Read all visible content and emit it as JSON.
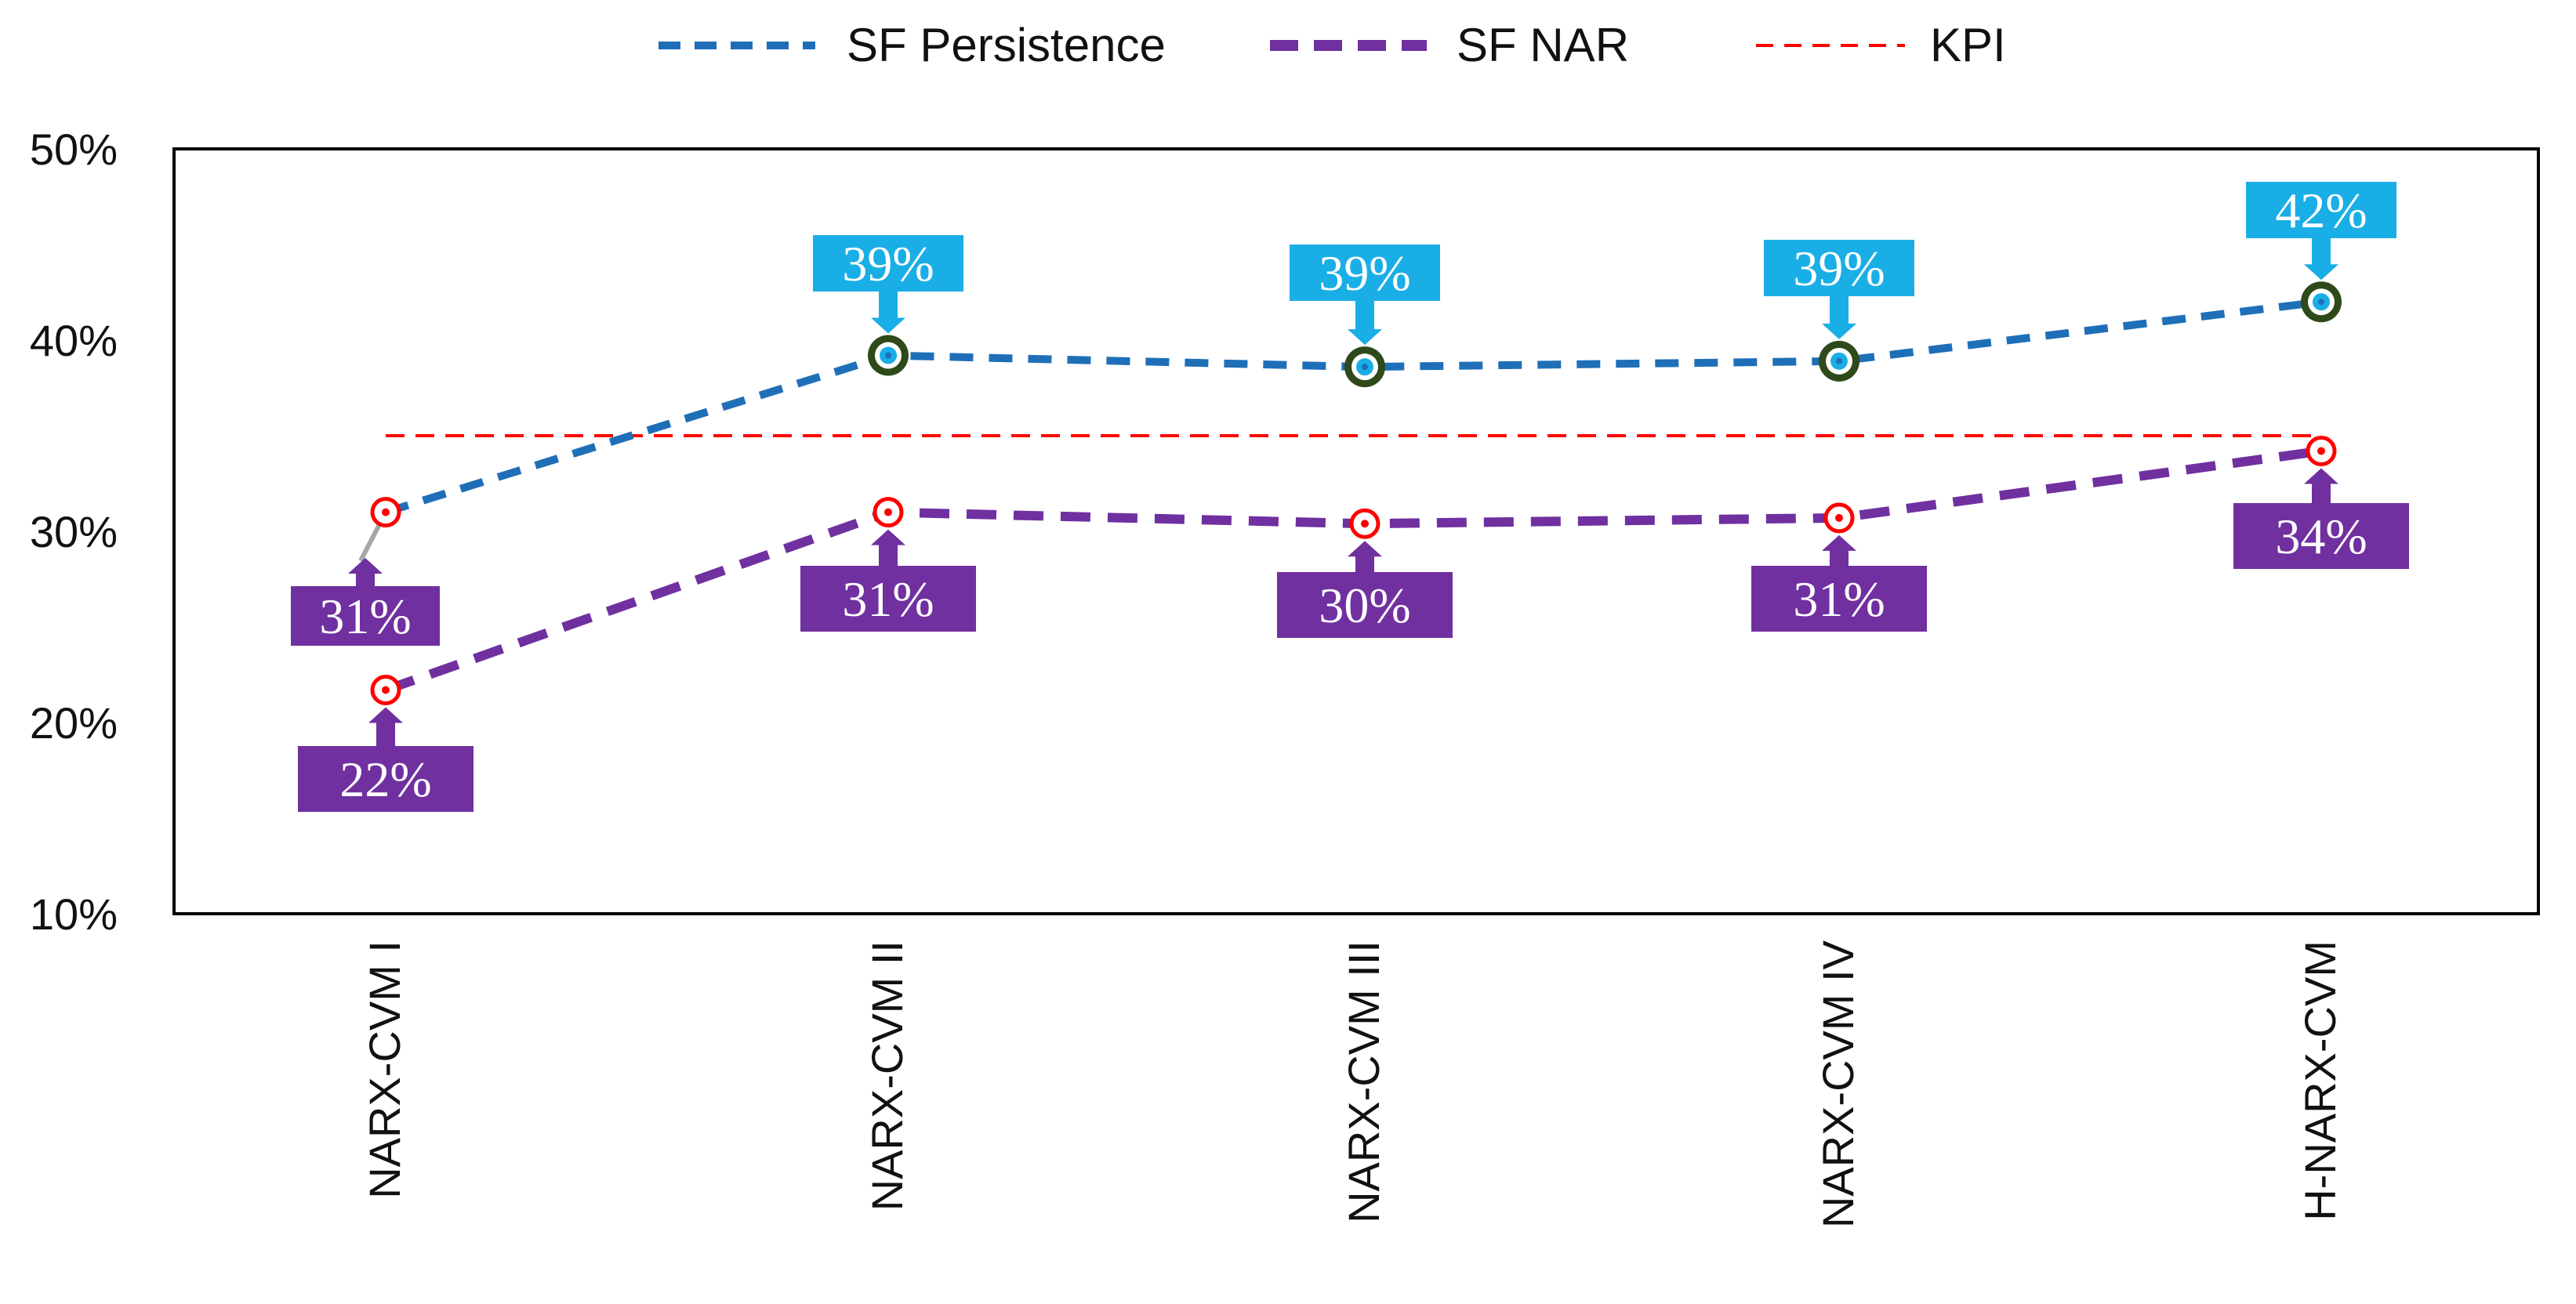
{
  "chart_data": {
    "type": "line",
    "title": "",
    "xlabel": "",
    "ylabel": "",
    "ylim": [
      10,
      50
    ],
    "yticks": [
      10,
      20,
      30,
      40,
      50
    ],
    "ytick_labels": [
      "10%",
      "20%",
      "30%",
      "40%",
      "50%"
    ],
    "categories": [
      "NARX-CVM I",
      "NARX-CVM II",
      "NARX-CVM III",
      "NARX-CVM IV",
      "H-NARX-CVM"
    ],
    "series": [
      {
        "name": "SF Persistence",
        "values": [
          31,
          39.2,
          38.6,
          38.9,
          42
        ],
        "labels": [
          "31%",
          "39%",
          "39%",
          "39%",
          "42%"
        ],
        "color": "#1f6fb8",
        "callout_color": "#1aaee6"
      },
      {
        "name": "SF NAR",
        "values": [
          21.7,
          31,
          30.4,
          30.7,
          34.2
        ],
        "labels": [
          "22%",
          "31%",
          "30%",
          "31%",
          "34%"
        ],
        "color": "#7030a0",
        "callout_color": "#7030a0"
      },
      {
        "name": "KPI",
        "values": [
          35,
          35,
          35,
          35,
          35
        ],
        "color": "#ff0000"
      }
    ],
    "legend": [
      "SF Persistence",
      "SF NAR",
      "KPI"
    ],
    "legend_position": "top-center",
    "grid": false
  }
}
